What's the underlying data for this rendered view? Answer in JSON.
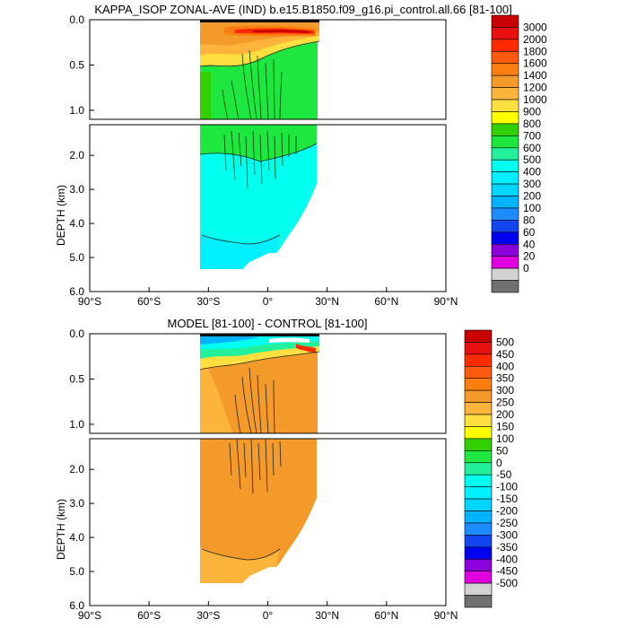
{
  "figure": {
    "top_title": "KAPPA_ISOP ZONAL-AVE (IND) b.e15.B1850.f09_g16.pi_control.all.66 [81-100]",
    "bottom_title": "MODEL [81-100] - CONTROL [81-100]"
  },
  "chart_data": [
    {
      "type": "contour",
      "title": "KAPPA_ISOP ZONAL-AVE (IND) b.e15.B1850.f09_g16.pi_control.all.66 [81-100]",
      "xlabel": "",
      "ylabel": "DEPTH (km)",
      "x_ticks": [
        "90°S",
        "60°S",
        "30°S",
        "0°",
        "30°N",
        "60°N",
        "90°N"
      ],
      "x_tick_values": [
        -90,
        -60,
        -30,
        0,
        30,
        60,
        90
      ],
      "xlim": [
        -90,
        90
      ],
      "upper_y_ticks": [
        "0.0",
        "0.5",
        "1.0"
      ],
      "upper_y_values": [
        0,
        0.5,
        1.0
      ],
      "upper_ylim": [
        0,
        1.1
      ],
      "lower_y_ticks": [
        "2.0",
        "3.0",
        "4.0",
        "5.0",
        "6.0"
      ],
      "lower_y_values": [
        2,
        3,
        4,
        5,
        6
      ],
      "lower_ylim": [
        1.1,
        6
      ],
      "data_extent_lon": [
        -34,
        26
      ],
      "dominant_level_upper": "600-700",
      "dominant_level_lower": "400-500",
      "surface_max_level": "3000",
      "colorbar_labels": [
        "3000",
        "2000",
        "1800",
        "1600",
        "1400",
        "1200",
        "1000",
        "900",
        "800",
        "700",
        "600",
        "500",
        "400",
        "300",
        "200",
        "100",
        "80",
        "60",
        "40",
        "20",
        "0"
      ],
      "colorbar_colors": [
        "#c80000",
        "#e81010",
        "#ff2a00",
        "#ff5a10",
        "#fb7f10",
        "#f49a2a",
        "#fcb43a",
        "#fde040",
        "#ffff00",
        "#33d000",
        "#1ee840",
        "#22f09a",
        "#00ffee",
        "#00f0ff",
        "#00d6ff",
        "#00b4ff",
        "#1c8cff",
        "#1446f0",
        "#0000f0",
        "#8c00dc",
        "#e000e0",
        "#d2d2d2",
        "#707070"
      ]
    },
    {
      "type": "contour",
      "title": "MODEL [81-100] - CONTROL [81-100]",
      "xlabel": "",
      "ylabel": "DEPTH (km)",
      "x_ticks": [
        "90°S",
        "60°S",
        "30°S",
        "0°",
        "30°N",
        "60°N",
        "90°N"
      ],
      "x_tick_values": [
        -90,
        -60,
        -30,
        0,
        30,
        60,
        90
      ],
      "xlim": [
        -90,
        90
      ],
      "upper_y_ticks": [
        "0.0",
        "0.5",
        "1.0"
      ],
      "upper_y_values": [
        0,
        0.5,
        1.0
      ],
      "upper_ylim": [
        0,
        1.1
      ],
      "lower_y_ticks": [
        "2.0",
        "3.0",
        "4.0",
        "5.0",
        "6.0"
      ],
      "lower_y_values": [
        2,
        3,
        4,
        5,
        6
      ],
      "lower_ylim": [
        1.1,
        6
      ],
      "data_extent_lon": [
        -34,
        26
      ],
      "dominant_level_upper": "250-300",
      "dominant_level_lower": "250-300",
      "colorbar_labels": [
        "500",
        "450",
        "400",
        "350",
        "300",
        "250",
        "200",
        "150",
        "100",
        "50",
        "0",
        "-50",
        "-100",
        "-150",
        "-200",
        "-250",
        "-300",
        "-350",
        "-400",
        "-450",
        "-500"
      ],
      "colorbar_colors": [
        "#c80000",
        "#e81010",
        "#ff2a00",
        "#ff5a10",
        "#fb7f10",
        "#f49a2a",
        "#fcb43a",
        "#fde040",
        "#ffff00",
        "#33d000",
        "#1ee840",
        "#22f09a",
        "#00ffee",
        "#00f0ff",
        "#00d6ff",
        "#00b4ff",
        "#1c8cff",
        "#1446f0",
        "#0000f0",
        "#8c00dc",
        "#e000e0",
        "#d2d2d2",
        "#707070"
      ]
    }
  ]
}
